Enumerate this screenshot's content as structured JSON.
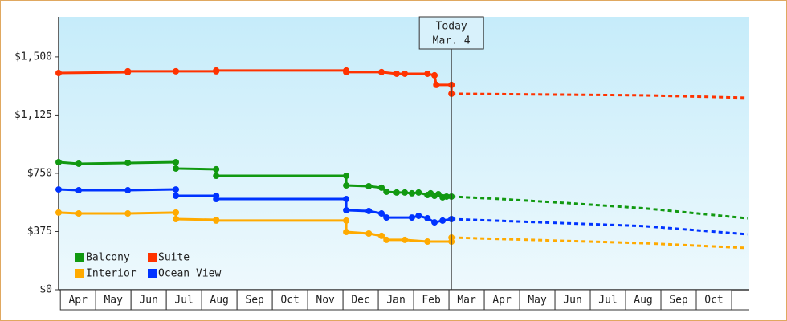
{
  "chart_data": {
    "type": "line",
    "categories": [
      "Apr",
      "May",
      "Jun",
      "Jul",
      "Aug",
      "Sep",
      "Oct",
      "Nov",
      "Dec",
      "Jan",
      "Feb",
      "Mar",
      "Apr",
      "May",
      "Jun",
      "Jul",
      "Aug",
      "Sep",
      "Oct"
    ],
    "xlim": [
      -0.05,
      19.5
    ],
    "ylim": [
      0,
      1758
    ],
    "yticks": [
      {
        "value": 0,
        "label": "$0"
      },
      {
        "value": 375,
        "label": "$375"
      },
      {
        "value": 750,
        "label": "$750"
      },
      {
        "value": 1125,
        "label": "$1,125"
      },
      {
        "value": 1500,
        "label": "$1,500"
      }
    ],
    "today": {
      "title": "Today",
      "date": "Mar. 4",
      "x": 11.07
    },
    "series": [
      {
        "name": "Balcony",
        "color": "#119911",
        "x": [
          -0.05,
          0.52,
          1.91,
          3.27,
          3.27,
          4.41,
          4.41,
          8.09,
          8.09,
          8.73,
          9.09,
          9.23,
          9.52,
          9.75,
          9.95,
          10.14,
          10.39,
          10.48,
          10.59,
          10.7,
          10.82,
          10.93,
          11.07
        ],
        "values": [
          822,
          812,
          817,
          822,
          781,
          776,
          734,
          734,
          672,
          667,
          657,
          631,
          626,
          626,
          621,
          626,
          610,
          621,
          605,
          615,
          595,
          600,
          600
        ],
        "projected_x": [
          11.07,
          12.41,
          14.23,
          16.5,
          19.45
        ],
        "projected_values": [
          600,
          585,
          560,
          525,
          460
        ]
      },
      {
        "name": "Suite",
        "color": "#ff3300",
        "x": [
          -0.05,
          1.91,
          1.91,
          3.27,
          4.41,
          4.41,
          8.09,
          8.09,
          9.09,
          9.52,
          9.75,
          10.39,
          10.59,
          10.64,
          11.07,
          11.07
        ],
        "values": [
          1396,
          1401,
          1407,
          1407,
          1407,
          1412,
          1412,
          1402,
          1402,
          1391,
          1391,
          1391,
          1381,
          1319,
          1319,
          1262
        ],
        "projected_x": [
          11.07,
          16.5,
          19.45
        ],
        "projected_values": [
          1262,
          1252,
          1236
        ]
      },
      {
        "name": "Interior",
        "color": "#ffaa00",
        "x": [
          -0.05,
          0.52,
          1.91,
          3.27,
          3.27,
          4.41,
          4.41,
          8.09,
          8.09,
          8.73,
          9.09,
          9.23,
          9.75,
          10.39,
          11.07,
          11.07
        ],
        "values": [
          497,
          491,
          491,
          497,
          455,
          450,
          445,
          445,
          372,
          362,
          347,
          321,
          321,
          310,
          310,
          336
        ],
        "projected_x": [
          11.07,
          16.5,
          19.45
        ],
        "projected_values": [
          336,
          300,
          269
        ]
      },
      {
        "name": "Ocean View",
        "color": "#0033ff",
        "x": [
          -0.05,
          0.52,
          1.91,
          3.27,
          3.27,
          4.41,
          4.41,
          8.09,
          8.09,
          8.73,
          9.09,
          9.23,
          9.95,
          10.14,
          10.39,
          10.59,
          10.82,
          11.07
        ],
        "values": [
          646,
          641,
          641,
          646,
          605,
          605,
          584,
          584,
          512,
          507,
          491,
          465,
          465,
          476,
          460,
          434,
          445,
          455
        ],
        "projected_x": [
          11.07,
          16.5,
          19.45
        ],
        "projected_values": [
          455,
          410,
          357
        ]
      }
    ]
  }
}
